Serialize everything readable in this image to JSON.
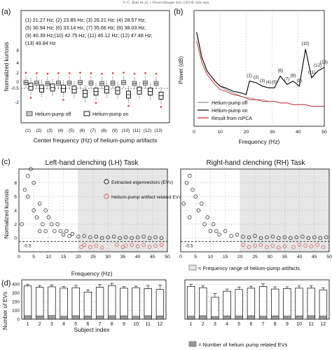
{
  "header": "Y.-C. Kim et al. / NeuroImage xxx (2014) xxx–xxx",
  "panels": {
    "a": {
      "letter": "(a)",
      "ylabel": "Normalized kurtosis",
      "xlabel": "Center frequency (Hz) of helium-pump artifacts",
      "freq_list": [
        "(1) 21.27 Hz; (2) 23.85 Hz; (3) 26.21 Hz; (4) 28.57 Hz;",
        "(5) 30.94 Hz; (6) 33.14 Hz; (7) 35.66 Hz; (8) 38.03 Hz;",
        "(9) 40.39 Hz;(10) 42.75 Hz; (11) 45.12 Hz; (12) 47.48 Hz;",
        "(13) 49.84 Hz"
      ],
      "legend": [
        "Helium-pump off",
        "Helium-pump on"
      ],
      "dashed_label": "-0.5",
      "y_ticks": [
        "8",
        "4",
        "2",
        "0",
        "-2"
      ],
      "categories": [
        "(1)",
        "(2)",
        "(3)",
        "(4)",
        "(5)",
        "(6)",
        "(7)",
        "(8)",
        "(9)",
        "(10)",
        "(11)",
        "(12)",
        "(13)"
      ]
    },
    "b": {
      "letter": "(b)",
      "ylabel": "Power (dB)",
      "xlabel": "Frequency (Hz)",
      "peak_labels": [
        "(1)",
        "(2)",
        "(3)",
        "(4)",
        "(5)",
        "(6)",
        "(7)",
        "(8)",
        "(9)",
        "(10)",
        "(11)",
        "(12)",
        "(13)"
      ],
      "legend": [
        "Helium-pump off",
        "Helium-pump on",
        "Result from rsPCA"
      ],
      "x_ticks": [
        "0",
        "10",
        "20",
        "30",
        "40",
        "50"
      ]
    },
    "c": {
      "letter": "(c)",
      "ylabel": "Normalized kurtosis",
      "xlabel": "Frequency (Hz)",
      "left_title": "Left-hand clenching (LH) Task",
      "right_title": "Right-hand clenching (RH) Task",
      "legend": [
        "Extracted eigenvectors (EVs)",
        "Helium-pump artifact related EVs"
      ],
      "shade_legend": "= Frequency range of helium-pump artifacts",
      "y_ticks": [
        "8",
        "6",
        "4",
        "2",
        "0"
      ],
      "x_ticks": [
        "0",
        "5",
        "10",
        "15",
        "20",
        "25",
        "30",
        "35",
        "40",
        "45",
        "50"
      ],
      "dashed_label": "-0.5"
    },
    "d": {
      "letter": "(d)",
      "ylabel": "Number of EVs",
      "xlabel": "Subject index",
      "y_ticks": [
        "400",
        "300",
        "200",
        "100",
        "0"
      ],
      "legend": "= Number of helium pump related EVs"
    }
  },
  "chart_data": [
    {
      "panel": "a",
      "type": "box",
      "categories": [
        "(1)",
        "(2)",
        "(3)",
        "(4)",
        "(5)",
        "(6)",
        "(7)",
        "(8)",
        "(9)",
        "(10)",
        "(11)",
        "(12)",
        "(13)"
      ],
      "series": [
        {
          "name": "Helium-pump off",
          "medians": [
            0.2,
            0.1,
            0.0,
            0.1,
            0.1,
            0.2,
            0.1,
            0.0,
            0.1,
            0.2,
            0.0,
            0.1,
            0.0
          ]
        },
        {
          "name": "Helium-pump on",
          "medians": [
            -0.3,
            -0.5,
            -0.4,
            -0.5,
            -0.6,
            -1.0,
            -0.8,
            -0.6,
            -0.7,
            -1.1,
            -0.7,
            -0.8,
            -1.2
          ]
        }
      ],
      "dashed_line": -0.5
    },
    {
      "panel": "b",
      "type": "line",
      "x": [
        1,
        3,
        5,
        8,
        10,
        12,
        15,
        18,
        20,
        21.3,
        23.9,
        26.2,
        28.6,
        30.9,
        33.1,
        35.7,
        38.0,
        40.4,
        42.8,
        45.1,
        47.5,
        49.8
      ],
      "series": [
        {
          "name": "Helium-pump off",
          "values": [
            -95,
            -110,
            -118,
            -124,
            -127,
            -129,
            -131,
            -133,
            -134,
            -134,
            -135,
            -135,
            -136,
            -136,
            -137,
            -137,
            -138,
            -138,
            -138,
            -139,
            -139,
            -139
          ]
        },
        {
          "name": "Helium-pump on",
          "values": [
            -95,
            -110,
            -118,
            -124,
            -127,
            -128,
            -130,
            -131,
            -132,
            -124,
            -125,
            -127,
            -128,
            -128,
            -121,
            -126,
            -124,
            -127,
            -105,
            -122,
            -118,
            -116
          ]
        },
        {
          "name": "Result from rsPCA",
          "values": [
            -100,
            -113,
            -120,
            -126,
            -129,
            -130,
            -132,
            -133,
            -134,
            -135,
            -135,
            -136,
            -136,
            -136,
            -137,
            -137,
            -138,
            -138,
            -138,
            -139,
            -139,
            -139
          ]
        }
      ],
      "xlim": [
        0,
        50
      ],
      "peak_freqs": [
        21.27,
        23.85,
        26.21,
        28.57,
        30.94,
        33.14,
        35.66,
        38.03,
        40.39,
        42.75,
        45.12,
        47.48,
        49.84
      ]
    },
    {
      "panel": "c-left",
      "type": "scatter",
      "title": "Left-hand clenching (LH) Task",
      "xlim": [
        0,
        50
      ],
      "ylim": [
        -2,
        10
      ],
      "shaded_range": [
        20,
        50
      ],
      "dashed_line": -0.5,
      "series": [
        {
          "name": "Extracted eigenvectors (EVs)",
          "points": [
            [
              1,
              2
            ],
            [
              2,
              7
            ],
            [
              3,
              9
            ],
            [
              3,
              6
            ],
            [
              4,
              10
            ],
            [
              5,
              8
            ],
            [
              5,
              4
            ],
            [
              6,
              3
            ],
            [
              7,
              5
            ],
            [
              7,
              1
            ],
            [
              8,
              2
            ],
            [
              9,
              4
            ],
            [
              9,
              1
            ],
            [
              10,
              3
            ],
            [
              11,
              2
            ],
            [
              12,
              1
            ],
            [
              13,
              2
            ],
            [
              14,
              1
            ],
            [
              15,
              0.5
            ],
            [
              16,
              1
            ],
            [
              17,
              0.3
            ],
            [
              18,
              0.6
            ],
            [
              20,
              0.2
            ],
            [
              22,
              0.3
            ],
            [
              24,
              0.1
            ],
            [
              26,
              0.2
            ],
            [
              28,
              0.0
            ],
            [
              30,
              0.1
            ],
            [
              32,
              0.2
            ],
            [
              34,
              0.0
            ],
            [
              36,
              0.1
            ],
            [
              38,
              0.0
            ],
            [
              40,
              0.1
            ],
            [
              42,
              0.2
            ],
            [
              44,
              0.0
            ],
            [
              46,
              0.1
            ],
            [
              48,
              0.0
            ]
          ]
        },
        {
          "name": "Helium-pump artifact related EVs",
          "points": [
            [
              21,
              -1.3
            ],
            [
              22,
              -1.0
            ],
            [
              24,
              -1.3
            ],
            [
              26,
              -1.1
            ],
            [
              28,
              -1.4
            ],
            [
              33,
              -1.0
            ],
            [
              35,
              -1.3
            ],
            [
              36,
              -1.1
            ],
            [
              38,
              -1.0
            ],
            [
              40,
              -1.2
            ],
            [
              42,
              -1.0
            ],
            [
              44,
              -1.3
            ],
            [
              46,
              -1.1
            ],
            [
              48,
              -1.0
            ]
          ]
        }
      ]
    },
    {
      "panel": "c-right",
      "type": "scatter",
      "title": "Right-hand clenching (RH) Task",
      "xlim": [
        0,
        50
      ],
      "ylim": [
        -2,
        10
      ],
      "shaded_range": [
        20,
        50
      ],
      "dashed_line": -0.5,
      "series": [
        {
          "name": "Extracted eigenvectors (EVs)",
          "points": [
            [
              1,
              5
            ],
            [
              2,
              8
            ],
            [
              3,
              9
            ],
            [
              3,
              3
            ],
            [
              4,
              7
            ],
            [
              5,
              6
            ],
            [
              6,
              4
            ],
            [
              7,
              5
            ],
            [
              8,
              2
            ],
            [
              9,
              3
            ],
            [
              10,
              1
            ],
            [
              11,
              2
            ],
            [
              12,
              1
            ],
            [
              13,
              0.5
            ],
            [
              15,
              1
            ],
            [
              17,
              0.3
            ],
            [
              19,
              0.5
            ],
            [
              21,
              0.2
            ],
            [
              23,
              0.1
            ],
            [
              25,
              0.3
            ],
            [
              27,
              0.0
            ],
            [
              29,
              0.1
            ],
            [
              31,
              0.2
            ],
            [
              33,
              0.0
            ],
            [
              35,
              0.1
            ],
            [
              37,
              0.0
            ],
            [
              39,
              0.1
            ],
            [
              41,
              0.2
            ],
            [
              43,
              0.0
            ],
            [
              45,
              0.1
            ],
            [
              47,
              0.0
            ],
            [
              49,
              0.1
            ]
          ]
        },
        {
          "name": "Helium-pump artifact related EVs",
          "points": [
            [
              21,
              -1.0
            ],
            [
              23,
              -1.3
            ],
            [
              25,
              -1.1
            ],
            [
              27,
              -1.0
            ],
            [
              29,
              -1.3
            ],
            [
              31,
              -1.1
            ],
            [
              33,
              -1.4
            ],
            [
              35,
              -1.2
            ],
            [
              38,
              -1.3
            ],
            [
              40,
              -1.0
            ],
            [
              42,
              -1.1
            ],
            [
              44,
              -1.2
            ],
            [
              46,
              -1.0
            ],
            [
              48,
              -1.3
            ]
          ]
        }
      ]
    },
    {
      "panel": "d-left",
      "type": "bar",
      "categories": [
        "1",
        "2",
        "3",
        "4",
        "5",
        "6",
        "7",
        "8",
        "9",
        "10",
        "11",
        "12"
      ],
      "values": [
        380,
        365,
        370,
        355,
        360,
        310,
        365,
        385,
        355,
        360,
        350,
        340
      ],
      "errors": [
        20,
        20,
        22,
        18,
        25,
        25,
        30,
        25,
        20,
        18,
        35,
        50
      ],
      "related_values": [
        40,
        38,
        42,
        35,
        40,
        38,
        36,
        40,
        38,
        35,
        40,
        38
      ],
      "ylim": [
        0,
        450
      ]
    },
    {
      "panel": "d-right",
      "type": "bar",
      "categories": [
        "1",
        "2",
        "3",
        "4",
        "5",
        "6",
        "7",
        "8",
        "9",
        "10",
        "11",
        "12"
      ],
      "values": [
        375,
        360,
        250,
        320,
        340,
        355,
        375,
        345,
        350,
        355,
        355,
        335
      ],
      "errors": [
        25,
        22,
        45,
        25,
        28,
        22,
        30,
        25,
        20,
        25,
        28,
        25
      ],
      "related_values": [
        35,
        40,
        30,
        38,
        36,
        40,
        35,
        38,
        36,
        38,
        40,
        36
      ],
      "ylim": [
        0,
        450
      ]
    }
  ]
}
